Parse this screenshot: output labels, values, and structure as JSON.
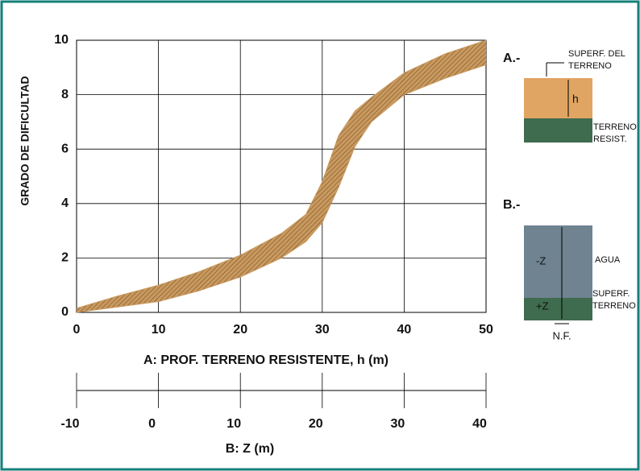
{
  "chart_data": {
    "type": "band",
    "ylabel": "GRADO DE DIFICULTAD",
    "xlabel": "A:  PROF. TERRENO RESISTENTE, h (m)",
    "x2label": "B: Z (m)",
    "x": [
      0,
      5,
      10,
      15,
      20,
      25,
      28,
      30,
      32,
      34,
      36,
      40,
      45,
      50
    ],
    "series": [
      {
        "color": "#c9995e",
        "values": [
          0.15,
          0.6,
          1.0,
          1.5,
          2.1,
          2.9,
          3.6,
          4.8,
          6.5,
          7.4,
          7.9,
          8.8,
          9.5,
          10
        ]
      },
      {
        "color": "#c9995e",
        "values": [
          0,
          0.2,
          0.4,
          0.8,
          1.3,
          2.0,
          2.6,
          3.3,
          4.6,
          6.1,
          7.0,
          8.0,
          8.6,
          9.1
        ]
      }
    ],
    "xlim": [
      0,
      50
    ],
    "xticks": [
      0,
      10,
      20,
      30,
      40,
      50
    ],
    "ylim": [
      0,
      10
    ],
    "yticks": [
      0,
      2,
      4,
      6,
      8,
      10
    ],
    "x2lim": [
      -10,
      40
    ],
    "x2ticks": [
      -10,
      0,
      10,
      20,
      30,
      40
    ],
    "grid": true,
    "annotations": {
      "a_title": "A.-",
      "a_top1": "SUPERF. DEL",
      "a_top2": "TERRENO",
      "a_h": "h",
      "a_bot1": "TERRENO",
      "a_bot2": "RESIST.",
      "b_title": "B.-",
      "b_minus": "-Z",
      "b_agua": "AGUA",
      "b_plus": "+Z",
      "b_sup1": "SUPERF.",
      "b_sup2": "TERRENO",
      "b_nf": "N.F."
    }
  }
}
